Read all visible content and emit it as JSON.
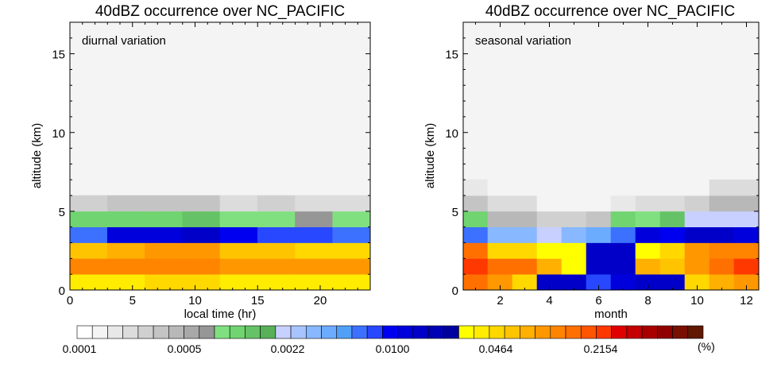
{
  "palette": [
    "#ffffff",
    "#f4f4f4",
    "#e8e8e8",
    "#dcdcdc",
    "#d0d0d0",
    "#c4c4c4",
    "#b8b8b8",
    "#a8a8a8",
    "#969696",
    "#80e080",
    "#70d470",
    "#66c266",
    "#58b058",
    "#c8d0ff",
    "#a8c4ff",
    "#88b8ff",
    "#6cacff",
    "#50a0f8",
    "#3c70ff",
    "#2848ff",
    "#0000f0",
    "#0000dc",
    "#0000c8",
    "#0000b4",
    "#0000a0",
    "#ffff00",
    "#ffec00",
    "#ffd800",
    "#ffc400",
    "#ffb000",
    "#ff9800",
    "#ff8400",
    "#ff7000",
    "#ff5400",
    "#ff3800",
    "#e00000",
    "#c40000",
    "#a80000",
    "#900000",
    "#781000",
    "#601800"
  ],
  "colorbar": {
    "tick_labels": [
      "0.0001",
      "0.0005",
      "0.0022",
      "0.0100",
      "0.0464",
      "0.2154"
    ],
    "unit": "(%)"
  },
  "chart_data": [
    {
      "type": "heatmap",
      "title": "40dBZ occurrence over NC_PACIFIC",
      "annotation": "diurnal variation",
      "xlabel": "local time (hr)",
      "ylabel": "altitude (km)",
      "xlim": [
        0,
        24
      ],
      "ylim": [
        0,
        17
      ],
      "x_ticks": [
        0,
        5,
        10,
        15,
        20
      ],
      "y_ticks": [
        0,
        5,
        10,
        15
      ],
      "x_bins": [
        0,
        3,
        6,
        9,
        12,
        15,
        18,
        21,
        24
      ],
      "y_bins": [
        0,
        1,
        2,
        3,
        4,
        5,
        6
      ],
      "background_color_index": 1,
      "color_index": [
        [
          26,
          26,
          27,
          27,
          26,
          26,
          26,
          26
        ],
        [
          31,
          31,
          31,
          31,
          30,
          30,
          30,
          30
        ],
        [
          28,
          29,
          30,
          30,
          28,
          28,
          27,
          27
        ],
        [
          18,
          21,
          21,
          22,
          20,
          19,
          19,
          18
        ],
        [
          10,
          10,
          10,
          11,
          9,
          9,
          8,
          9
        ],
        [
          4,
          5,
          5,
          5,
          3,
          4,
          3,
          3
        ]
      ]
    },
    {
      "type": "heatmap",
      "title": "40dBZ occurrence over NC_PACIFIC",
      "annotation": "seasonal variation",
      "xlabel": "month",
      "ylabel": "altitude (km)",
      "xlim": [
        0.5,
        12.5
      ],
      "ylim": [
        0,
        17
      ],
      "x_ticks": [
        2,
        4,
        6,
        8,
        10,
        12
      ],
      "y_ticks": [
        0,
        5,
        10,
        15
      ],
      "x_bins": [
        0.5,
        1.5,
        2.5,
        3.5,
        4.5,
        5.5,
        6.5,
        7.5,
        8.5,
        9.5,
        10.5,
        11.5,
        12.5
      ],
      "y_bins": [
        0,
        1,
        2,
        3,
        4,
        5,
        6,
        7
      ],
      "background_color_index": 1,
      "color_index": [
        [
          32,
          30,
          27,
          22,
          22,
          19,
          21,
          22,
          22,
          27,
          29,
          30
        ],
        [
          34,
          32,
          32,
          29,
          25,
          22,
          22,
          29,
          28,
          30,
          32,
          34
        ],
        [
          32,
          27,
          27,
          25,
          25,
          22,
          22,
          25,
          27,
          30,
          31,
          31
        ],
        [
          18,
          15,
          15,
          13,
          15,
          16,
          18,
          21,
          20,
          22,
          22,
          21
        ],
        [
          10,
          6,
          6,
          4,
          4,
          5,
          10,
          9,
          11,
          13,
          13,
          13
        ],
        [
          5,
          3,
          3,
          1,
          1,
          1,
          2,
          3,
          3,
          4,
          6,
          6
        ],
        [
          2,
          1,
          1,
          1,
          1,
          1,
          1,
          1,
          1,
          1,
          3,
          3
        ]
      ]
    }
  ]
}
